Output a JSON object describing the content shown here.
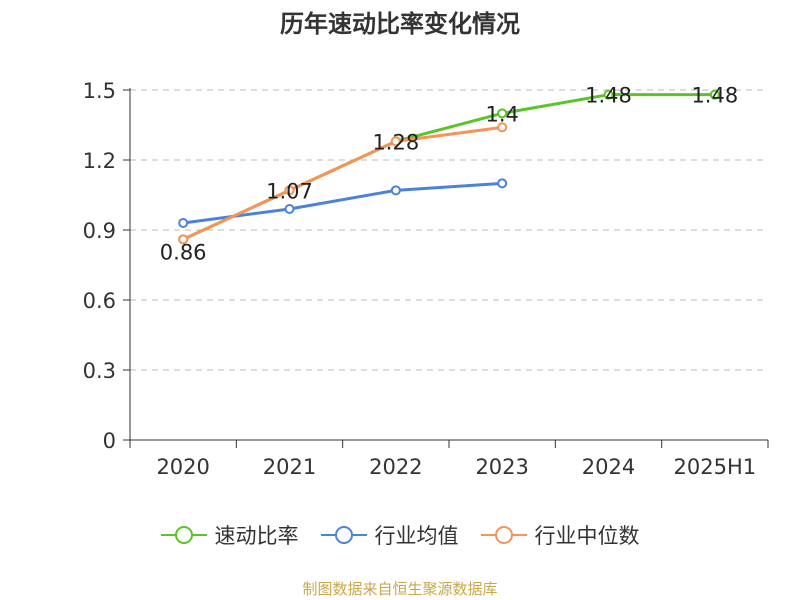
{
  "colors": {
    "speed_ratio": "#5cc328",
    "industry_avg": "#4d82d9",
    "industry_median": "#f5935a",
    "grid": "#bbbbbb",
    "axis": "#333333",
    "source": "#c8a84b"
  },
  "source_note": "制图数据来自恒生聚源数据库",
  "chart_data": {
    "type": "line",
    "title": "历年速动比率变化情况",
    "categories": [
      "2020",
      "2021",
      "2022",
      "2023",
      "2024",
      "2025H1"
    ],
    "ylim": [
      0,
      1.5
    ],
    "yticks": [
      "0",
      "0.3",
      "0.6",
      "0.9",
      "1.2",
      "1.5"
    ],
    "grid": true,
    "legend_position": "bottom",
    "series": [
      {
        "name": "速动比率",
        "color": "#5cc328",
        "values": [
          0.86,
          1.07,
          1.28,
          1.4,
          1.48,
          1.48
        ],
        "labels": [
          "0.86",
          "1.07",
          "1.28",
          "1.4",
          "1.48",
          "1.48"
        ]
      },
      {
        "name": "行业均值",
        "color": "#4d82d9",
        "values": [
          0.93,
          0.99,
          1.07,
          1.1,
          null,
          null
        ]
      },
      {
        "name": "行业中位数",
        "color": "#f5935a",
        "values": [
          0.86,
          1.07,
          1.28,
          1.34,
          null,
          null
        ]
      }
    ]
  }
}
